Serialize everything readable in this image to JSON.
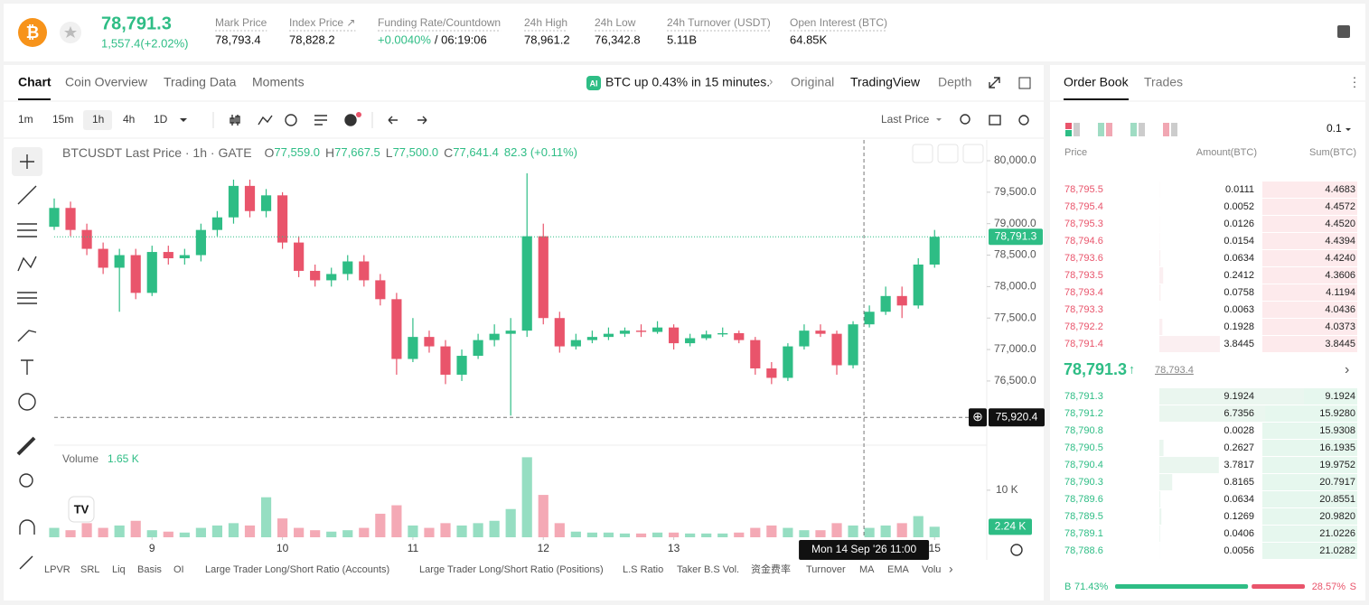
{
  "header": {
    "price": "78,791.3",
    "change": "1,557.4(+2.02%)",
    "stats": [
      {
        "label": "Mark Price",
        "value": "78,793.4"
      },
      {
        "label": "Index Price ↗",
        "value": "78,828.2"
      },
      {
        "label": "Funding Rate/Countdown",
        "value": "+0.0040%",
        "extra": "/ 06:19:06"
      },
      {
        "label": "24h High",
        "value": "78,961.2"
      },
      {
        "label": "24h Low",
        "value": "76,342.8"
      },
      {
        "label": "24h Turnover (USDT)",
        "value": "5.11B"
      },
      {
        "label": "Open Interest (BTC)",
        "value": "64.85K"
      }
    ]
  },
  "tabs": [
    "Chart",
    "Coin Overview",
    "Trading Data",
    "Moments"
  ],
  "news": "BTC up 0.43% in 15 minutes.",
  "view_tabs": [
    "Original",
    "TradingView",
    "Depth"
  ],
  "intervals": [
    "1m",
    "15m",
    "1h",
    "4h",
    "1D"
  ],
  "price_type": "Last Price",
  "indicators": [
    "LPVR",
    "SRL",
    "Liq",
    "Basis",
    "OI",
    "Large Trader Long/Short Ratio (Accounts)",
    "Large Trader Long/Short Ratio (Positions)",
    "L.S Ratio",
    "Taker B.S Vol.",
    "资金费率",
    "Turnover",
    "MA",
    "EMA",
    "Volu"
  ],
  "chart_data": {
    "type": "candlestick",
    "title": "BTCUSDT Last Price · 1h · GATE",
    "legend": [
      {
        "key": "O",
        "value": "77,559.0"
      },
      {
        "key": "H",
        "value": "77,667.5"
      },
      {
        "key": "L",
        "value": "77,500.0"
      },
      {
        "key": "C",
        "value": "77,641.4"
      }
    ],
    "legend_change": "82.3 (+0.11%)",
    "up_color": "#2ebd85",
    "down_color": "#e9546b",
    "x": [
      8.25,
      8.375,
      8.5,
      8.625,
      8.75,
      8.875,
      9,
      9.125,
      9.25,
      9.375,
      9.5,
      9.625,
      9.75,
      9.875,
      10,
      10.125,
      10.25,
      10.375,
      10.5,
      10.625,
      10.75,
      10.875,
      11,
      11.125,
      11.25,
      11.375,
      11.5,
      11.625,
      11.75,
      11.875,
      12,
      12.125,
      12.25,
      12.375,
      12.5,
      12.625,
      12.75,
      12.875,
      13,
      13.125,
      13.25,
      13.375,
      13.5,
      13.625,
      13.75,
      13.875,
      14,
      14.125,
      14.25,
      14.375,
      14.5,
      14.625,
      14.75,
      14.875,
      15
    ],
    "ohlc": [
      [
        78950,
        79400,
        78900,
        79250
      ],
      [
        79250,
        79350,
        78800,
        78900
      ],
      [
        78900,
        79000,
        78500,
        78600
      ],
      [
        78600,
        78700,
        78200,
        78300
      ],
      [
        78300,
        78600,
        77600,
        78500
      ],
      [
        78500,
        78600,
        77800,
        77900
      ],
      [
        77900,
        78650,
        77850,
        78550
      ],
      [
        78550,
        78650,
        78350,
        78450
      ],
      [
        78450,
        78600,
        78350,
        78500
      ],
      [
        78500,
        79000,
        78400,
        78900
      ],
      [
        78900,
        79200,
        78800,
        79100
      ],
      [
        79100,
        79700,
        79000,
        79600
      ],
      [
        79600,
        79700,
        79100,
        79200
      ],
      [
        79200,
        79550,
        79100,
        79450
      ],
      [
        79450,
        79500,
        78600,
        78700
      ],
      [
        78700,
        78800,
        78150,
        78250
      ],
      [
        78250,
        78350,
        78000,
        78100
      ],
      [
        78100,
        78300,
        78000,
        78200
      ],
      [
        78200,
        78500,
        78100,
        78400
      ],
      [
        78400,
        78500,
        78000,
        78100
      ],
      [
        78100,
        78200,
        77700,
        77800
      ],
      [
        77800,
        77900,
        76600,
        76850
      ],
      [
        76850,
        77500,
        76800,
        77200
      ],
      [
        77200,
        77300,
        76950,
        77050
      ],
      [
        77050,
        77150,
        76450,
        76600
      ],
      [
        76600,
        77000,
        76500,
        76900
      ],
      [
        76900,
        77250,
        76850,
        77150
      ],
      [
        77150,
        77400,
        77050,
        77250
      ],
      [
        77250,
        77500,
        75950,
        77300
      ],
      [
        77300,
        79800,
        77200,
        78800
      ],
      [
        78800,
        79000,
        77400,
        77500
      ],
      [
        77500,
        77600,
        76950,
        77050
      ],
      [
        77050,
        77250,
        77000,
        77150
      ],
      [
        77150,
        77300,
        77100,
        77200
      ],
      [
        77200,
        77350,
        77150,
        77250
      ],
      [
        77250,
        77350,
        77200,
        77300
      ],
      [
        77300,
        77400,
        77200,
        77280
      ],
      [
        77280,
        77450,
        77250,
        77350
      ],
      [
        77350,
        77400,
        77000,
        77100
      ],
      [
        77100,
        77250,
        77050,
        77180
      ],
      [
        77180,
        77300,
        77150,
        77240
      ],
      [
        77240,
        77350,
        77200,
        77260
      ],
      [
        77260,
        77300,
        77100,
        77150
      ],
      [
        77150,
        77200,
        76600,
        76700
      ],
      [
        76700,
        76800,
        76450,
        76550
      ],
      [
        76550,
        77100,
        76500,
        77050
      ],
      [
        77050,
        77400,
        77000,
        77300
      ],
      [
        77300,
        77400,
        77200,
        77250
      ],
      [
        77250,
        77300,
        76600,
        76750
      ],
      [
        76750,
        77450,
        76700,
        77400
      ],
      [
        77400,
        77700,
        77350,
        77600
      ],
      [
        77600,
        78000,
        77550,
        77850
      ],
      [
        77850,
        78000,
        77500,
        77700
      ],
      [
        77700,
        78450,
        77650,
        78350
      ],
      [
        78350,
        78900,
        78300,
        78791.3
      ]
    ],
    "volume": [
      2.0,
      1.5,
      3.0,
      2.0,
      2.5,
      3.5,
      1.5,
      1.2,
      1.0,
      2.0,
      2.5,
      3.0,
      2.5,
      8.5,
      4.0,
      2.0,
      1.5,
      1.2,
      1.5,
      2.0,
      5.0,
      6.8,
      2.5,
      2.0,
      3.0,
      2.5,
      3.0,
      3.5,
      6.0,
      17.0,
      9.0,
      3.0,
      1.2,
      1.0,
      1.0,
      0.8,
      0.8,
      1.0,
      1.0,
      0.8,
      0.8,
      0.8,
      1.0,
      2.0,
      2.5,
      2.0,
      1.5,
      1.5,
      3.0,
      2.5,
      2.0,
      2.5,
      3.0,
      4.5,
      2.24
    ],
    "xlim": [
      8.25,
      15.4
    ],
    "xticks": [
      9,
      10,
      11,
      12,
      13,
      15
    ],
    "ylim": [
      75480,
      80330
    ],
    "yticks": [
      {
        "value": 80000,
        "label": "80,000.0"
      },
      {
        "value": 79500,
        "label": "79,500.0"
      },
      {
        "value": 79000,
        "label": "79,000.0"
      },
      {
        "value": 78500,
        "label": "78,500.0"
      },
      {
        "value": 78000,
        "label": "78,000.0"
      },
      {
        "value": 77500,
        "label": "77,500.0"
      },
      {
        "value": 77000,
        "label": "77,000.0"
      },
      {
        "value": 76500,
        "label": "76,500.0"
      }
    ],
    "last_price": {
      "value": 78791.3,
      "label": "78,791.3"
    },
    "volume_title": "Volume",
    "volume_legend": "1.65 K",
    "vlim": [
      0,
      18.8
    ],
    "vticks": [
      {
        "value": 10,
        "label": "10 K"
      }
    ],
    "last_volume": {
      "value": 2.24,
      "label": "2.24 K"
    },
    "crosshair": {
      "x": 14.4583,
      "time": "Mon 14 Sep '26   11:00",
      "price": {
        "value": 75920.4,
        "label": "75,920.4"
      }
    }
  },
  "order_book": {
    "tabs": [
      "Order Book",
      "Trades"
    ],
    "precision": "0.1",
    "columns": [
      "Price",
      "Amount(BTC)",
      "Sum(BTC)"
    ],
    "asks": [
      [
        "78,795.5",
        "0.0111",
        "4.4683"
      ],
      [
        "78,795.4",
        "0.0052",
        "4.4572"
      ],
      [
        "78,795.3",
        "0.0126",
        "4.4520"
      ],
      [
        "78,794.6",
        "0.0154",
        "4.4394"
      ],
      [
        "78,793.6",
        "0.0634",
        "4.4240"
      ],
      [
        "78,793.5",
        "0.2412",
        "4.3606"
      ],
      [
        "78,793.4",
        "0.0758",
        "4.1194"
      ],
      [
        "78,793.3",
        "0.0063",
        "4.0436"
      ],
      [
        "78,792.2",
        "0.1928",
        "4.0373"
      ],
      [
        "78,791.4",
        "3.8445",
        "3.8445"
      ]
    ],
    "mid": "78,791.3",
    "mark": "78,793.4",
    "bids": [
      [
        "78,791.3",
        "9.1924",
        "9.1924"
      ],
      [
        "78,791.2",
        "6.7356",
        "15.9280"
      ],
      [
        "78,790.8",
        "0.0028",
        "15.9308"
      ],
      [
        "78,790.5",
        "0.2627",
        "16.1935"
      ],
      [
        "78,790.4",
        "3.7817",
        "19.9752"
      ],
      [
        "78,790.3",
        "0.8165",
        "20.7917"
      ],
      [
        "78,789.6",
        "0.0634",
        "20.8551"
      ],
      [
        "78,789.5",
        "0.1269",
        "20.9820"
      ],
      [
        "78,789.1",
        "0.0406",
        "21.0226"
      ],
      [
        "78,788.6",
        "0.0056",
        "21.0282"
      ]
    ],
    "buy_label": "B",
    "sell_label": "S",
    "buy": {
      "value": 71.43,
      "label": "71.43%"
    },
    "sell": {
      "value": 28.57,
      "label": "28.57%"
    }
  }
}
